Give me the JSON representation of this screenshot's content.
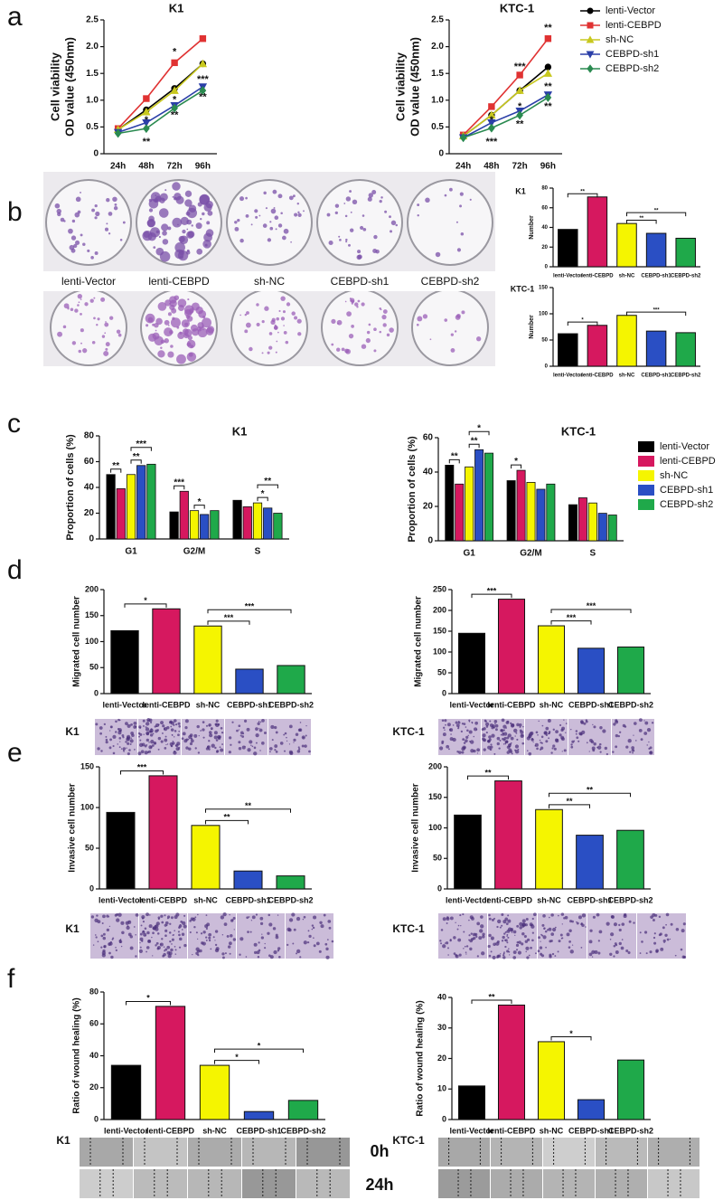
{
  "panel_labels": [
    "a",
    "b",
    "c",
    "d",
    "e",
    "f"
  ],
  "plate_labels": [
    "lenti-Vector",
    "lenti-CEBPD",
    "sh-NC",
    "CEBPD-sh1",
    "CEBPD-sh2"
  ],
  "time_labels": [
    "0h",
    "24h"
  ],
  "chart_data": [
    {
      "type": "line",
      "title": "K1",
      "ylabel": [
        "Cell viability",
        "OD value (450nm)"
      ],
      "categories": [
        "24h",
        "48h",
        "72h",
        "96h"
      ],
      "series": [
        {
          "color": "#000000",
          "marker": "circle",
          "values": [
            0.45,
            0.82,
            1.22,
            1.68
          ]
        },
        {
          "color": "#e03232",
          "marker": "square",
          "values": [
            0.47,
            1.03,
            1.7,
            2.15
          ]
        },
        {
          "color": "#c8c81e",
          "marker": "triangle-up",
          "values": [
            0.45,
            0.78,
            1.18,
            1.68
          ]
        },
        {
          "color": "#2b3fa8",
          "marker": "triangle-down",
          "values": [
            0.4,
            0.58,
            0.9,
            1.25
          ]
        },
        {
          "color": "#2a8a50",
          "marker": "diamond",
          "values": [
            0.38,
            0.47,
            0.85,
            1.18
          ]
        }
      ],
      "ylim": [
        0,
        2.5
      ],
      "yticks": [
        0,
        0.5,
        {
          "value": 1,
          "label": "1.0"
        },
        1.5,
        {
          "value": 2,
          "label": "2.0"
        },
        2.5
      ],
      "annotations": [
        {
          "label": "*",
          "x": "72h",
          "y": 1.9
        },
        {
          "label": "*",
          "x": "48h",
          "y": 0.62
        },
        {
          "label": "**",
          "x": "48h",
          "y": 0.22
        },
        {
          "label": "*",
          "x": "72h",
          "y": 1.0
        },
        {
          "label": "**",
          "x": "72h",
          "y": 0.72
        },
        {
          "label": "***",
          "x": "96h",
          "y": 1.38
        },
        {
          "label": "**",
          "x": "96h",
          "y": 1.05
        }
      ]
    },
    {
      "type": "line",
      "title": "KTC-1",
      "ylabel": [
        "Cell viability",
        "OD value (450nm)"
      ],
      "categories": [
        "24h",
        "48h",
        "72h",
        "96h"
      ],
      "series": [
        {
          "name": "lenti-Vector",
          "color": "#000000",
          "marker": "circle",
          "values": [
            0.33,
            0.72,
            1.18,
            1.62
          ]
        },
        {
          "name": "lenti-CEBPD",
          "color": "#e03232",
          "marker": "square",
          "values": [
            0.35,
            0.88,
            1.47,
            2.15
          ]
        },
        {
          "name": "sh-NC",
          "color": "#c8c81e",
          "marker": "triangle-up",
          "values": [
            0.33,
            0.72,
            1.18,
            1.5
          ]
        },
        {
          "name": "CEBPD-sh1",
          "color": "#2b3fa8",
          "marker": "triangle-down",
          "values": [
            0.3,
            0.58,
            0.8,
            1.1
          ]
        },
        {
          "name": "CEBPD-sh2",
          "color": "#2a8a50",
          "marker": "diamond",
          "values": [
            0.3,
            0.48,
            0.72,
            1.05
          ]
        }
      ],
      "ylim": [
        0,
        2.5
      ],
      "yticks": [
        0,
        0.5,
        {
          "value": 1,
          "label": "1.0"
        },
        1.5,
        {
          "value": 2,
          "label": "2.0"
        },
        2.5
      ],
      "legend": "right",
      "annotations": [
        {
          "label": "**",
          "x": "96h",
          "y": 2.35
        },
        {
          "label": "***",
          "x": "72h",
          "y": 1.62
        },
        {
          "label": "*",
          "x": "48h",
          "y": 0.62
        },
        {
          "label": "***",
          "x": "48h",
          "y": 0.22
        },
        {
          "label": "*",
          "x": "72h",
          "y": 0.88
        },
        {
          "label": "**",
          "x": "72h",
          "y": 0.55
        },
        {
          "label": "**",
          "x": "96h",
          "y": 1.25
        },
        {
          "label": "**",
          "x": "96h",
          "y": 0.88
        }
      ]
    },
    {
      "type": "bar",
      "title": "K1",
      "ylabel": "Number",
      "categories": [
        "lenti-Vector",
        "lenti-CEBPD",
        "sh-NC",
        "CEBPD-sh1",
        "CEBPD-sh2"
      ],
      "values": [
        38,
        71,
        44,
        34,
        29
      ],
      "colors": [
        "#000000",
        "#d6185f",
        "#f5f500",
        "#2a4fc4",
        "#1fa94a"
      ],
      "ylim": [
        0,
        80
      ],
      "yticks": [
        0,
        20,
        40,
        60,
        80
      ],
      "brackets": [
        {
          "label": "**",
          "from": "lenti-Vector",
          "to": "lenti-CEBPD"
        },
        {
          "label": "**",
          "from": "sh-NC",
          "to": "CEBPD-sh1"
        },
        {
          "label": "**",
          "from": "sh-NC",
          "to": "CEBPD-sh2"
        }
      ]
    },
    {
      "type": "bar",
      "title": "KTC-1",
      "ylabel": "Number",
      "categories": [
        "lenti-Vector",
        "lenti-CEBPD",
        "sh-NC",
        "CEBPD-sh1",
        "CEBPD-sh2"
      ],
      "values": [
        62,
        78,
        97,
        67,
        64
      ],
      "colors": [
        "#000000",
        "#d6185f",
        "#f5f500",
        "#2a4fc4",
        "#1fa94a"
      ],
      "ylim": [
        0,
        150
      ],
      "yticks": [
        0,
        50,
        100,
        150
      ],
      "brackets": [
        {
          "label": "*",
          "from": "lenti-Vector",
          "to": "lenti-CEBPD"
        },
        {
          "label": "***",
          "from": "sh-NC",
          "to": "CEBPD-sh2"
        }
      ]
    },
    {
      "type": "grouped_bar",
      "title": "K1",
      "ylabel": "Proportion of cells (%)",
      "categories": [
        "G1",
        "G2/M",
        "S"
      ],
      "series": [
        {
          "color": "#000000",
          "values": [
            50,
            21,
            30
          ]
        },
        {
          "color": "#d6185f",
          "values": [
            39,
            37,
            25
          ]
        },
        {
          "color": "#f5f500",
          "values": [
            50,
            22,
            28
          ]
        },
        {
          "color": "#2a4fc4",
          "values": [
            57,
            19,
            24
          ]
        },
        {
          "color": "#1fa94a",
          "values": [
            58,
            22,
            20
          ]
        }
      ],
      "ylim": [
        0,
        80
      ],
      "yticks": [
        0,
        20,
        40,
        60,
        80
      ],
      "brackets": [
        {
          "label": "**",
          "category": "G1",
          "from": 0,
          "to": 1
        },
        {
          "label": "**",
          "category": "G1",
          "from": 2,
          "to": 3
        },
        {
          "label": "***",
          "category": "G1",
          "from": 2,
          "to": 4
        },
        {
          "label": "***",
          "category": "G2/M",
          "from": 0,
          "to": 1
        },
        {
          "label": "*",
          "category": "G2/M",
          "from": 2,
          "to": 3
        },
        {
          "label": "*",
          "category": "S",
          "from": 2,
          "to": 3
        },
        {
          "label": "**",
          "category": "S",
          "from": 2,
          "to": 4
        }
      ]
    },
    {
      "type": "grouped_bar",
      "title": "KTC-1",
      "ylabel": "Proportion of cells (%)",
      "categories": [
        "G1",
        "G2/M",
        "S"
      ],
      "series": [
        {
          "name": "lenti-Vector",
          "color": "#000000",
          "values": [
            44,
            35,
            21
          ]
        },
        {
          "name": "lenti-CEBPD",
          "color": "#d6185f",
          "values": [
            33,
            41,
            25
          ]
        },
        {
          "name": "sh-NC",
          "color": "#f5f500",
          "values": [
            43,
            34,
            22
          ]
        },
        {
          "name": "CEBPD-sh1",
          "color": "#2a4fc4",
          "values": [
            53,
            30,
            16
          ]
        },
        {
          "name": "CEBPD-sh2",
          "color": "#1fa94a",
          "values": [
            51,
            33,
            15
          ]
        }
      ],
      "ylim": [
        0,
        60
      ],
      "yticks": [
        0,
        20,
        40,
        60
      ],
      "legend": "right",
      "brackets": [
        {
          "label": "**",
          "category": "G1",
          "from": 0,
          "to": 1
        },
        {
          "label": "**",
          "category": "G1",
          "from": 2,
          "to": 3
        },
        {
          "label": "*",
          "category": "G1",
          "from": 2,
          "to": 4
        },
        {
          "label": "*",
          "category": "G2/M",
          "from": 0,
          "to": 1
        }
      ]
    },
    {
      "type": "bar",
      "ylabel": "Migrated cell number",
      "strip_label": "K1",
      "categories": [
        "lenti-Vector",
        "lenti-CEBPD",
        "sh-NC",
        "CEBPD-sh1",
        "CEBPD-sh2"
      ],
      "values": [
        121,
        163,
        130,
        47,
        54
      ],
      "colors": [
        "#000000",
        "#d6185f",
        "#f5f500",
        "#2a4fc4",
        "#1fa94a"
      ],
      "ylim": [
        0,
        200
      ],
      "yticks": [
        0,
        50,
        100,
        150,
        200
      ],
      "brackets": [
        {
          "label": "*",
          "from": "lenti-Vector",
          "to": "lenti-CEBPD"
        },
        {
          "label": "***",
          "from": "sh-NC",
          "to": "CEBPD-sh1"
        },
        {
          "label": "***",
          "from": "sh-NC",
          "to": "CEBPD-sh2"
        }
      ]
    },
    {
      "type": "bar",
      "ylabel": "Migrated cell number",
      "strip_label": "KTC-1",
      "categories": [
        "lenti-Vector",
        "lenti-CEBPD",
        "sh-NC",
        "CEBPD-sh1",
        "CEBPD-sh2"
      ],
      "values": [
        145,
        227,
        163,
        109,
        112
      ],
      "colors": [
        "#000000",
        "#d6185f",
        "#f5f500",
        "#2a4fc4",
        "#1fa94a"
      ],
      "ylim": [
        0,
        250
      ],
      "yticks": [
        0,
        50,
        100,
        150,
        200,
        250
      ],
      "brackets": [
        {
          "label": "***",
          "from": "lenti-Vector",
          "to": "lenti-CEBPD"
        },
        {
          "label": "***",
          "from": "sh-NC",
          "to": "CEBPD-sh1"
        },
        {
          "label": "***",
          "from": "sh-NC",
          "to": "CEBPD-sh2"
        }
      ]
    },
    {
      "type": "bar",
      "ylabel": "Invasive cell number",
      "strip_label": "K1",
      "categories": [
        "lenti-Vector",
        "lenti-CEBPD",
        "sh-NC",
        "CEBPD-sh1",
        "CEBPD-sh2"
      ],
      "values": [
        94,
        139,
        78,
        22,
        16
      ],
      "colors": [
        "#000000",
        "#d6185f",
        "#f5f500",
        "#2a4fc4",
        "#1fa94a"
      ],
      "ylim": [
        0,
        150
      ],
      "yticks": [
        0,
        50,
        100,
        150
      ],
      "brackets": [
        {
          "label": "***",
          "from": "lenti-Vector",
          "to": "lenti-CEBPD"
        },
        {
          "label": "**",
          "from": "sh-NC",
          "to": "CEBPD-sh1"
        },
        {
          "label": "**",
          "from": "sh-NC",
          "to": "CEBPD-sh2"
        }
      ]
    },
    {
      "type": "bar",
      "ylabel": "Invasive cell number",
      "strip_label": "KTC-1",
      "categories": [
        "lenti-Vector",
        "lenti-CEBPD",
        "sh-NC",
        "CEBPD-sh1",
        "CEBPD-sh2"
      ],
      "values": [
        121,
        177,
        130,
        88,
        96
      ],
      "colors": [
        "#000000",
        "#d6185f",
        "#f5f500",
        "#2a4fc4",
        "#1fa94a"
      ],
      "ylim": [
        0,
        200
      ],
      "yticks": [
        0,
        50,
        100,
        150,
        200
      ],
      "brackets": [
        {
          "label": "**",
          "from": "lenti-Vector",
          "to": "lenti-CEBPD"
        },
        {
          "label": "**",
          "from": "sh-NC",
          "to": "CEBPD-sh1"
        },
        {
          "label": "**",
          "from": "sh-NC",
          "to": "CEBPD-sh2"
        }
      ]
    },
    {
      "type": "bar",
      "ylabel": "Ratio of wound healing (%)",
      "strip_label": "K1",
      "categories": [
        "lenti-Vector",
        "lenti-CEBPD",
        "sh-NC",
        "CEBPD-sh1",
        "CEBPD-sh2"
      ],
      "values": [
        34,
        71,
        34,
        5,
        12
      ],
      "colors": [
        "#000000",
        "#d6185f",
        "#f5f500",
        "#2a4fc4",
        "#1fa94a"
      ],
      "ylim": [
        0,
        80
      ],
      "yticks": [
        0,
        20,
        40,
        60,
        80
      ],
      "brackets": [
        {
          "label": "*",
          "from": "lenti-Vector",
          "to": "lenti-CEBPD"
        },
        {
          "label": "*",
          "from": "sh-NC",
          "to": "CEBPD-sh1"
        },
        {
          "label": "*",
          "from": "sh-NC",
          "to": "CEBPD-sh2"
        }
      ]
    },
    {
      "type": "bar",
      "ylabel": "Ratio of wound healing (%)",
      "strip_label": "KTC-1",
      "categories": [
        "lenti-Vector",
        "lenti-CEBPD",
        "sh-NC",
        "CEBPD-sh1",
        "CEBPD-sh2"
      ],
      "values": [
        11,
        37.5,
        25.5,
        6.5,
        19.5
      ],
      "colors": [
        "#000000",
        "#d6185f",
        "#f5f500",
        "#2a4fc4",
        "#1fa94a"
      ],
      "ylim": [
        0,
        40
      ],
      "yticks": [
        0,
        10,
        20,
        30,
        40
      ],
      "brackets": [
        {
          "label": "**",
          "from": "lenti-Vector",
          "to": "lenti-CEBPD"
        },
        {
          "label": "*",
          "from": "sh-NC",
          "to": "CEBPD-sh1"
        }
      ]
    }
  ]
}
